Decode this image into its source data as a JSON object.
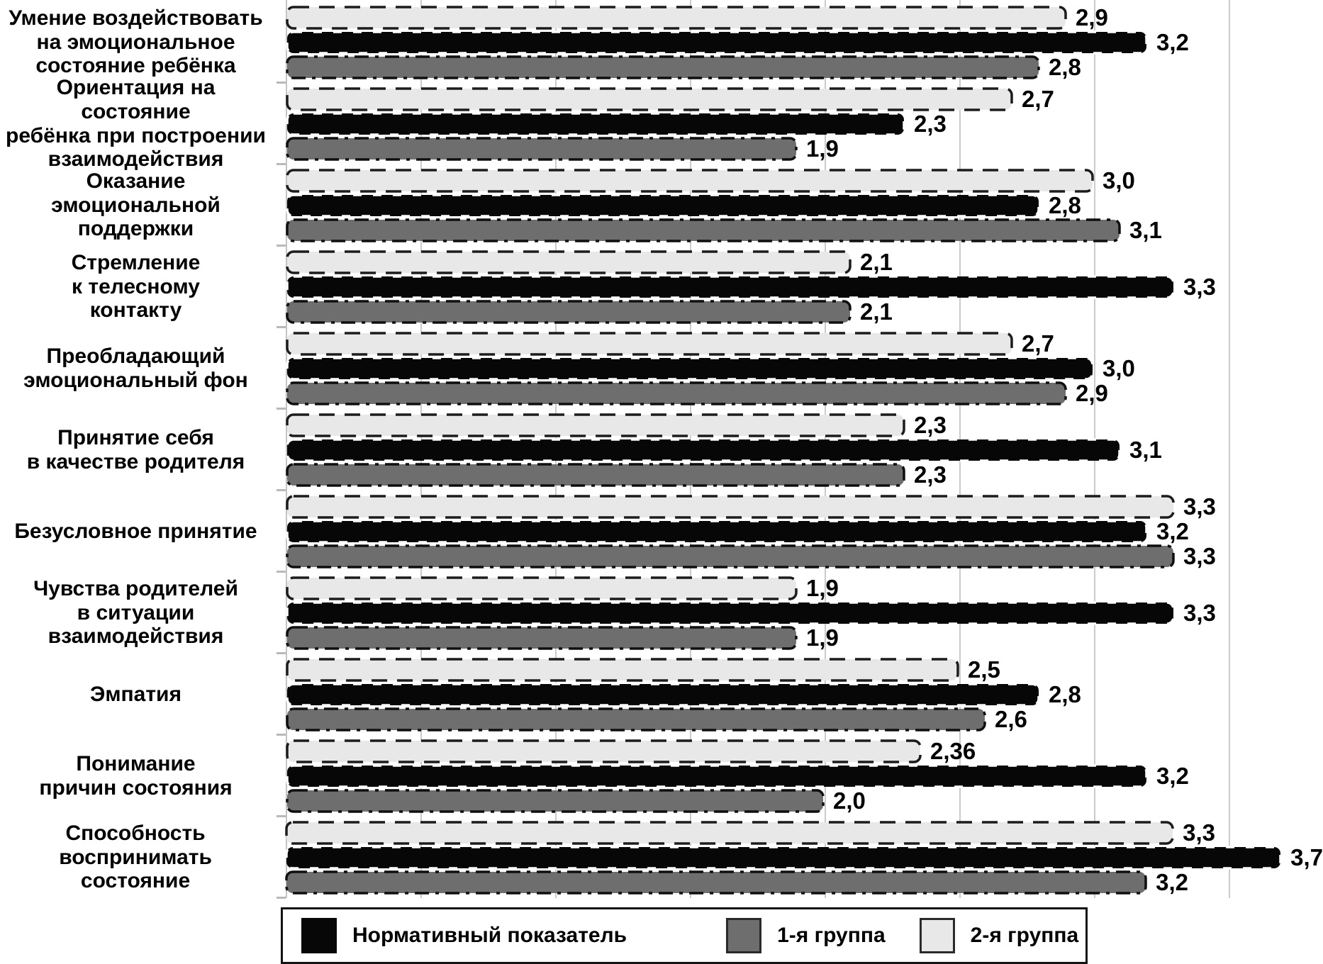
{
  "chart_data": {
    "type": "bar",
    "orientation": "horizontal",
    "title": "",
    "xlabel": "",
    "ylabel": "",
    "xlim": [
      0,
      3.85
    ],
    "gridline_step": 0.5,
    "grid": "vertical light-gray lines every 0.5",
    "legend_position": "bottom",
    "categories": [
      "Умение воздействовать\nна эмоциональное\nсостояние ребёнка",
      "Ориентация на состояние\nребёнка при  построении\nвзаимодействия",
      "Оказание\nэмоциональной\nподдержки",
      "Стремление\nк телесному\nконтакту",
      "Преобладающий\nэмоциональный фон",
      "Принятие себя\nв качестве родителя",
      "Безусловное принятие",
      "Чувства родителей\nв ситуации\nвзаимодействия",
      "Эмпатия",
      "Понимание\nпричин состояния",
      "Способность\nвоспринимать\nсостояние"
    ],
    "series": [
      {
        "name": "Нормативный показатель",
        "key": "normative",
        "color": "#070707",
        "values": [
          3.2,
          2.3,
          2.8,
          3.3,
          3.0,
          3.1,
          3.2,
          3.3,
          2.8,
          3.2,
          3.7
        ],
        "labels": [
          "3,2",
          "2,3",
          "2,8",
          "3,3",
          "3,0",
          "3,1",
          "3,2",
          "3,3",
          "2,8",
          "3,2",
          "3,7"
        ]
      },
      {
        "name": "1-я группа",
        "key": "group1",
        "color": "#6e6e6e",
        "values": [
          2.8,
          1.9,
          3.1,
          2.1,
          2.9,
          2.3,
          3.3,
          1.9,
          2.6,
          2.0,
          3.2
        ],
        "labels": [
          "2,8",
          "1,9",
          "3,1",
          "2,1",
          "2,9",
          "2,3",
          "3,3",
          "1,9",
          "2,6",
          "2,0",
          "3,2"
        ]
      },
      {
        "name": "2-я группа",
        "key": "group2",
        "color": "#e8e8e8",
        "values": [
          2.9,
          2.7,
          3.0,
          2.1,
          2.7,
          2.3,
          3.3,
          1.9,
          2.5,
          2.36,
          3.3
        ],
        "labels": [
          "2,9",
          "2,7",
          "3,0",
          "2,1",
          "2,7",
          "2,3",
          "3,3",
          "1,9",
          "2,5",
          "2,36",
          "3,3"
        ]
      }
    ],
    "bar_render_order_top_to_bottom": [
      "2-я группа",
      "Нормативный показатель",
      "1-я группа"
    ]
  },
  "legend": {
    "items": [
      {
        "label": "Нормативный показатель",
        "swatch": "normative"
      },
      {
        "label": "1-я группа",
        "swatch": "group1"
      },
      {
        "label": "2-я группа",
        "swatch": "group2"
      }
    ]
  },
  "colors": {
    "normative_fill": "#070707",
    "group1_fill": "#6e6e6e",
    "group2_fill": "#e8e8e8",
    "gridline": "#cbcbcb",
    "text": "#000000",
    "legend_border": "#141414"
  }
}
